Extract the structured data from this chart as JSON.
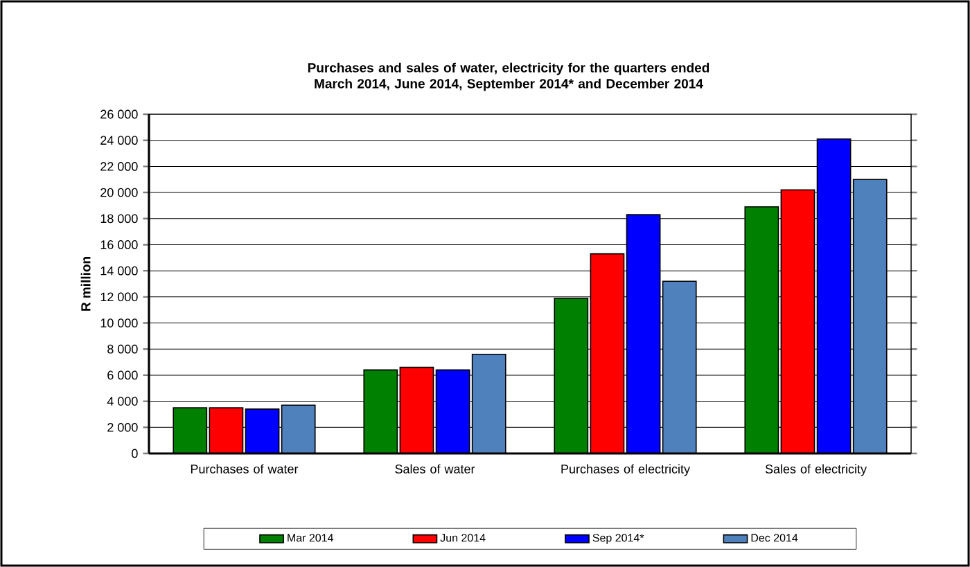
{
  "chart_data": {
    "type": "bar",
    "title": "Purchases and sales of water, electricity for the quarters ended March 2014, June 2014, September 2014* and December 2014",
    "ylabel": "R million",
    "categories": [
      "Purchases of water",
      "Sales of water",
      "Purchases of electricity",
      "Sales of electricity"
    ],
    "series": [
      {
        "name": "Mar 2014",
        "color": "#008000",
        "values": [
          3500,
          6400,
          11900,
          18900
        ]
      },
      {
        "name": "Jun 2014",
        "color": "#ff0000",
        "values": [
          3500,
          6600,
          15300,
          20200
        ]
      },
      {
        "name": "Sep 2014*",
        "color": "#0000ff",
        "values": [
          3400,
          6400,
          18300,
          24100
        ]
      },
      {
        "name": "Dec 2014",
        "color": "#4f81bd",
        "values": [
          3700,
          7600,
          13200,
          21000
        ]
      }
    ],
    "ylim": [
      0,
      26000
    ],
    "yticks": [
      0,
      {
        "value": 2000,
        "label": "2 000"
      },
      {
        "value": 4000,
        "label": "4 000"
      },
      {
        "value": 6000,
        "label": "6 000"
      },
      {
        "value": 8000,
        "label": "8 000"
      },
      {
        "value": 10000,
        "label": "10 000"
      },
      {
        "value": 12000,
        "label": "12 000"
      },
      {
        "value": 14000,
        "label": "14 000"
      },
      {
        "value": 16000,
        "label": "16 000"
      },
      {
        "value": 18000,
        "label": "18 000"
      },
      {
        "value": 20000,
        "label": "20 000"
      },
      {
        "value": 22000,
        "label": "22 000"
      },
      {
        "value": 24000,
        "label": "24 000"
      },
      {
        "value": 26000,
        "label": "26 000"
      }
    ],
    "grid": "y",
    "legend": "bottom"
  }
}
